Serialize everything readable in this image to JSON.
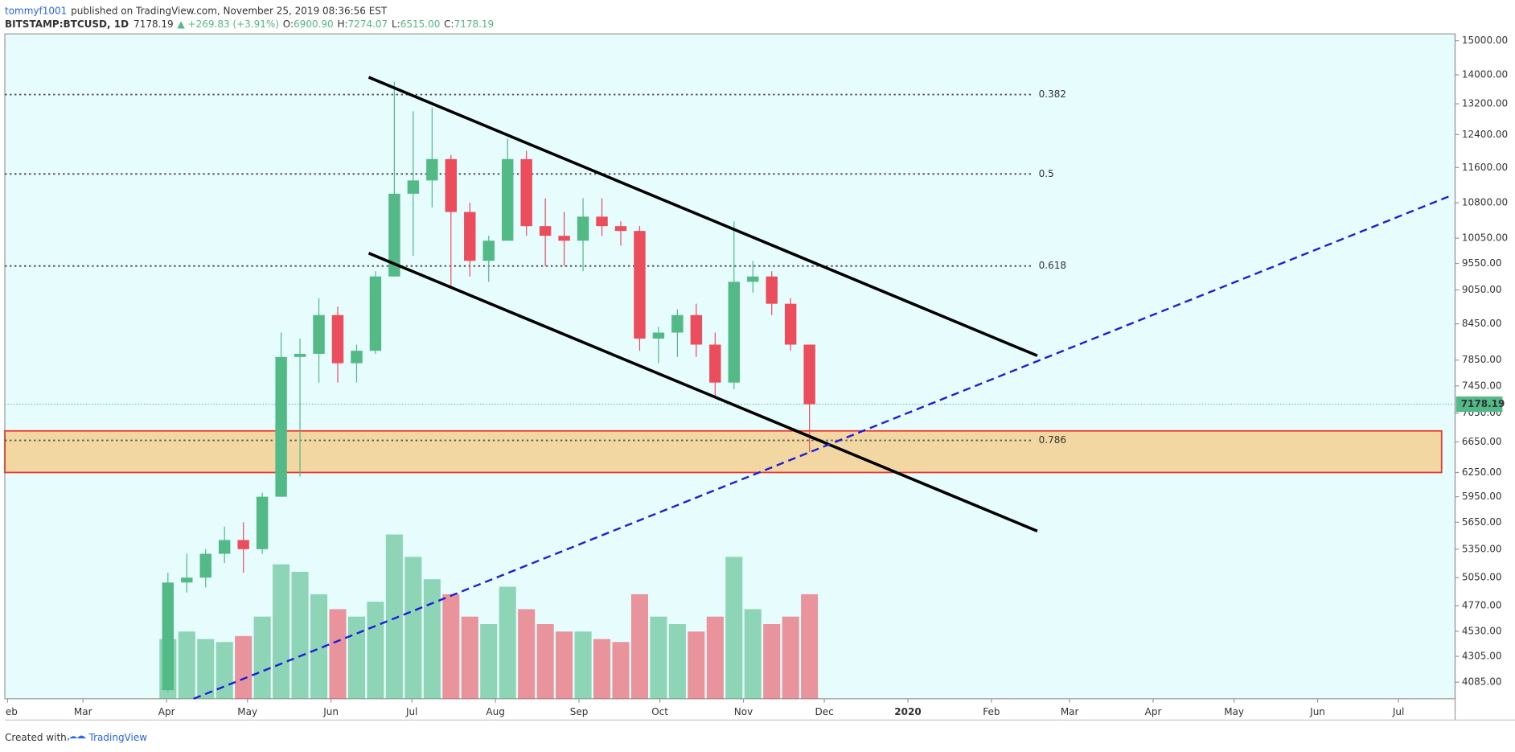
{
  "header": {
    "author": "tommyf1001",
    "published": "published on TradingView.com, November 25, 2019 08:36:56 EST",
    "symbol": "BITSTAMP:BTCUSD, 1D",
    "last": "7178.19",
    "change": "▲ +269.83 (+3.91%)",
    "o_label": "O:",
    "o": "6900.90",
    "h_label": "H:",
    "h": "7274.07",
    "l_label": "L:",
    "l": "6515.00",
    "c_label": "C:",
    "c": "7178.19"
  },
  "chart_data": {
    "type": "candlestick",
    "log_scale": true,
    "up_color": "#53b987",
    "down_color": "#eb4d5c",
    "x": [
      56,
      63,
      70,
      77,
      84,
      91,
      98,
      105,
      112,
      119,
      126,
      133,
      140,
      147,
      154,
      161,
      168,
      175,
      182,
      189,
      196,
      203,
      210,
      217,
      224,
      231,
      238,
      245,
      252,
      259,
      266,
      273,
      280,
      287,
      294
    ],
    "open": [
      4020,
      5000,
      5050,
      5300,
      5450,
      5350,
      5950,
      7900,
      7950,
      8600,
      7800,
      8000,
      9300,
      11000,
      11300,
      11800,
      10600,
      9600,
      10000,
      11800,
      10300,
      10100,
      10000,
      10500,
      10300,
      10200,
      8200,
      8300,
      8600,
      8100,
      7500,
      9200,
      9300,
      8800,
      8100
    ],
    "high": [
      5100,
      5300,
      5350,
      5600,
      5650,
      6000,
      8300,
      8200,
      8900,
      8750,
      8100,
      9400,
      13800,
      13000,
      13100,
      11900,
      10800,
      10100,
      12300,
      12000,
      10900,
      10600,
      10900,
      10900,
      10400,
      10300,
      8400,
      8700,
      8800,
      8300,
      10400,
      9600,
      9400,
      8900,
      8100
    ],
    "low": [
      4000,
      4900,
      4950,
      5200,
      5100,
      5300,
      5950,
      6200,
      7500,
      7500,
      7500,
      7950,
      9300,
      9700,
      10700,
      9100,
      9300,
      9200,
      10000,
      10100,
      9500,
      9500,
      9400,
      10100,
      9900,
      8000,
      7800,
      7900,
      7900,
      7300,
      7400,
      9000,
      8600,
      8000,
      6515
    ],
    "close": [
      5000,
      5050,
      5300,
      5450,
      5350,
      5950,
      7900,
      7950,
      8600,
      7800,
      8000,
      9300,
      11000,
      11300,
      11800,
      10600,
      9600,
      10000,
      11800,
      10300,
      10100,
      10000,
      10500,
      10300,
      10200,
      8200,
      8300,
      8600,
      8100,
      7500,
      9200,
      9300,
      8800,
      8100,
      7178.19
    ],
    "volume": [
      40,
      45,
      40,
      38,
      42,
      55,
      90,
      85,
      70,
      60,
      55,
      65,
      110,
      95,
      80,
      70,
      55,
      50,
      75,
      60,
      50,
      45,
      45,
      40,
      38,
      70,
      55,
      50,
      45,
      55,
      95,
      60,
      50,
      55,
      70
    ],
    "last_price": 7178.19,
    "last_label": "7178.19",
    "xlim": [
      -1,
      537
    ],
    "xticks": [
      {
        "value": 0,
        "label": "eb"
      },
      {
        "value": 28,
        "label": "Mar"
      },
      {
        "value": 59,
        "label": "Apr"
      },
      {
        "value": 89,
        "label": "May"
      },
      {
        "value": 120,
        "label": "Jun"
      },
      {
        "value": 150,
        "label": "Jul"
      },
      {
        "value": 181,
        "label": "Aug"
      },
      {
        "value": 212,
        "label": "Sep"
      },
      {
        "value": 242,
        "label": "Oct"
      },
      {
        "value": 273,
        "label": "Nov"
      },
      {
        "value": 303,
        "label": "Dec"
      },
      {
        "value": 334,
        "label": "2020"
      },
      {
        "value": 365,
        "label": "Feb"
      },
      {
        "value": 394,
        "label": "Mar"
      },
      {
        "value": 425,
        "label": "Apr"
      },
      {
        "value": 455,
        "label": "May"
      },
      {
        "value": 486,
        "label": "Jun"
      },
      {
        "value": 516,
        "label": "Jul"
      }
    ],
    "ylim": [
      3950,
      15210
    ],
    "yticks": [
      {
        "value": 15000,
        "label": "15000.00"
      },
      {
        "value": 14000,
        "label": "14000.00"
      },
      {
        "value": 13200,
        "label": "13200.00"
      },
      {
        "value": 12400,
        "label": "12400.00"
      },
      {
        "value": 11600,
        "label": "11600.00"
      },
      {
        "value": 10800,
        "label": "10800.00"
      },
      {
        "value": 10050,
        "label": "10050.00"
      },
      {
        "value": 9550,
        "label": "9550.00"
      },
      {
        "value": 9050,
        "label": "9050.00"
      },
      {
        "value": 8450,
        "label": "8450.00"
      },
      {
        "value": 7850,
        "label": "7850.00"
      },
      {
        "value": 7450,
        "label": "7450.00"
      },
      {
        "value": 7050,
        "label": "7050.00"
      },
      {
        "value": 6650,
        "label": "6650.00"
      },
      {
        "value": 6250,
        "label": "6250.00"
      },
      {
        "value": 5950,
        "label": "5950.00"
      },
      {
        "value": 5650,
        "label": "5650.00"
      },
      {
        "value": 5350,
        "label": "5350.00"
      },
      {
        "value": 5050,
        "label": "5050.00"
      },
      {
        "value": 4770,
        "label": "4770.00"
      },
      {
        "value": 4530,
        "label": "4530.00"
      },
      {
        "value": 4305,
        "label": "4305.00"
      },
      {
        "value": 4085,
        "label": "4085.00"
      }
    ],
    "fib_levels": [
      {
        "label": "0.382",
        "price": 13450
      },
      {
        "label": "0.5",
        "price": 11450
      },
      {
        "label": "0.618",
        "price": 9500
      },
      {
        "label": "0.786",
        "price": 6670
      }
    ],
    "zone": {
      "x": [
        -1,
        532
      ],
      "price": [
        6250,
        6800
      ]
    },
    "channel": [
      {
        "x": [
          134,
          382
        ],
        "price": [
          13930,
          7920
        ]
      },
      {
        "x": [
          134,
          382
        ],
        "price": [
          9750,
          5550
        ]
      }
    ],
    "trendline": {
      "x": [
        69,
        536
      ],
      "price": [
        3950,
        10970
      ]
    }
  },
  "footer": {
    "created": "Created with",
    "brand": "TradingView"
  }
}
